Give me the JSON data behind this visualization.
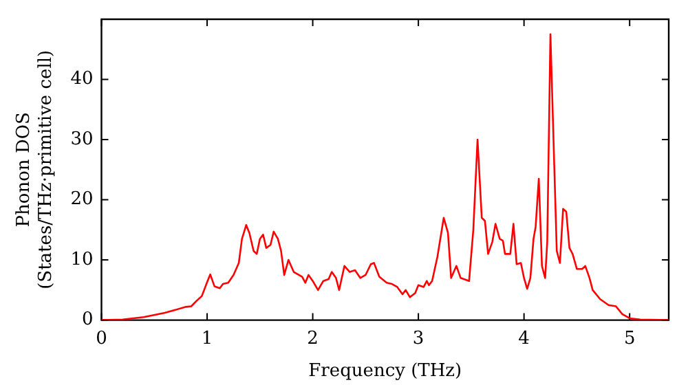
{
  "chart_data": {
    "type": "line",
    "xlabel": "Frequency (THz)",
    "ylabel": "Phonon DOS\n(States/THz·primitive cell)",
    "xlim": [
      0,
      5.37
    ],
    "xticks": [
      0,
      1,
      2,
      3,
      4,
      5
    ],
    "ylim": [
      0,
      50
    ],
    "yticks": [
      0,
      10,
      20,
      30,
      40
    ],
    "grid": false,
    "legend": false,
    "marker": "none",
    "line_style": "solid",
    "series": [
      {
        "color": "#ff0000",
        "x": [
          0,
          0.2,
          0.4,
          0.6,
          0.8,
          0.85,
          0.9,
          0.95,
          1.0,
          1.03,
          1.07,
          1.12,
          1.15,
          1.2,
          1.25,
          1.3,
          1.33,
          1.37,
          1.4,
          1.44,
          1.47,
          1.5,
          1.53,
          1.56,
          1.6,
          1.63,
          1.67,
          1.7,
          1.73,
          1.77,
          1.82,
          1.9,
          1.93,
          1.96,
          2.0,
          2.05,
          2.1,
          2.15,
          2.18,
          2.22,
          2.25,
          2.3,
          2.35,
          2.4,
          2.45,
          2.5,
          2.55,
          2.58,
          2.63,
          2.7,
          2.75,
          2.8,
          2.85,
          2.88,
          2.92,
          2.97,
          3.0,
          3.05,
          3.08,
          3.1,
          3.13,
          3.18,
          3.24,
          3.28,
          3.31,
          3.36,
          3.4,
          3.48,
          3.52,
          3.56,
          3.6,
          3.63,
          3.66,
          3.7,
          3.73,
          3.77,
          3.8,
          3.82,
          3.87,
          3.9,
          3.93,
          3.97,
          4.0,
          4.03,
          4.06,
          4.09,
          4.11,
          4.14,
          4.17,
          4.2,
          4.22,
          4.25,
          4.31,
          4.34,
          4.37,
          4.4,
          4.43,
          4.46,
          4.5,
          4.55,
          4.58,
          4.62,
          4.65,
          4.72,
          4.8,
          4.87,
          4.93,
          5.0,
          5.1,
          5.37
        ],
        "values": [
          0,
          0.1,
          0.5,
          1.2,
          2.2,
          2.3,
          3.2,
          4,
          6.3,
          7.6,
          5.6,
          5.3,
          6,
          6.2,
          7.5,
          9.5,
          13.5,
          15.8,
          14.5,
          11.5,
          11,
          13.5,
          14.2,
          12,
          12.5,
          14.7,
          13.5,
          11.5,
          7.5,
          10,
          8,
          7.2,
          6.2,
          7.5,
          6.5,
          5,
          6.5,
          6.8,
          8,
          7,
          5,
          9,
          8,
          8.3,
          7,
          7.5,
          9.3,
          9.5,
          7.2,
          6.2,
          6,
          5.5,
          4.3,
          5,
          3.8,
          4.5,
          5.8,
          5.5,
          6.5,
          5.8,
          6.5,
          10.5,
          17,
          14.5,
          7,
          9,
          7,
          6.5,
          15,
          30,
          17,
          16.5,
          11,
          13,
          16,
          13.5,
          13.2,
          11,
          11,
          16,
          9.3,
          9.5,
          7,
          5.2,
          7,
          13.5,
          15.5,
          23.5,
          9,
          7,
          13,
          47.5,
          11.5,
          9.5,
          18.5,
          18,
          12,
          11,
          8.5,
          8.5,
          9,
          7,
          5,
          3.5,
          2.5,
          2.3,
          1,
          0.3,
          0.1,
          0
        ]
      }
    ]
  }
}
